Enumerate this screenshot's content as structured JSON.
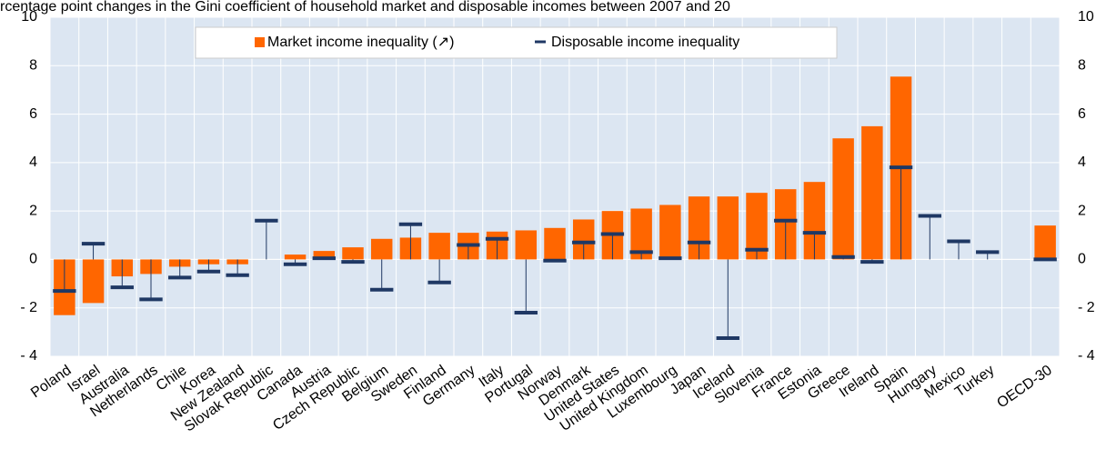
{
  "chart_data": {
    "type": "bar",
    "title": "rcentage point changes in the Gini coefficient of household market and disposable incomes between 2007 and 20",
    "categories": [
      "Poland",
      "Israel",
      "Australia",
      "Netherlands",
      "Chile",
      "Korea",
      "New Zealand",
      "Slovak Republic",
      "Canada",
      "Austria",
      "Czech Republic",
      "Belgium",
      "Sweden",
      "Finland",
      "Germany",
      "Italy",
      "Portugal",
      "Norway",
      "Denmark",
      "United States",
      "United Kingdom",
      "Luxembourg",
      "Japan",
      "Iceland",
      "Slovenia",
      "France",
      "Estonia",
      "Greece",
      "Ireland",
      "Spain",
      "Hungary",
      "Mexico",
      "Turkey",
      null,
      "OECD-30"
    ],
    "series": [
      {
        "name": "Market income inequality (↗)",
        "color": "#ff6600",
        "values": [
          -2.3,
          -1.8,
          -0.7,
          -0.6,
          -0.3,
          -0.2,
          -0.2,
          null,
          0.2,
          0.35,
          0.5,
          0.85,
          0.9,
          1.1,
          1.1,
          1.15,
          1.2,
          1.3,
          1.65,
          2.0,
          2.1,
          2.25,
          2.6,
          2.6,
          2.75,
          2.9,
          3.2,
          5.0,
          5.5,
          7.55,
          null,
          null,
          null,
          null,
          1.4
        ]
      },
      {
        "name": "Disposable income inequality",
        "color": "#1f3864",
        "values": [
          -1.3,
          0.65,
          -1.15,
          -1.65,
          -0.75,
          -0.5,
          -0.65,
          1.6,
          -0.2,
          0.05,
          -0.1,
          -1.25,
          1.45,
          -0.95,
          0.6,
          0.85,
          -2.2,
          -0.05,
          0.7,
          1.05,
          0.3,
          0.05,
          0.7,
          -3.25,
          0.4,
          1.6,
          1.1,
          0.1,
          -0.1,
          3.8,
          1.8,
          0.75,
          0.3,
          null,
          0.0
        ]
      }
    ],
    "ylim": [
      -4,
      10
    ],
    "yticks": [
      {
        "value": -4,
        "label": "- 4"
      },
      {
        "value": -2,
        "label": "- 2"
      },
      0,
      2,
      4,
      6,
      8,
      10
    ],
    "grid": true,
    "right_axis_labels": true,
    "plot_background": "#dce6f2"
  }
}
